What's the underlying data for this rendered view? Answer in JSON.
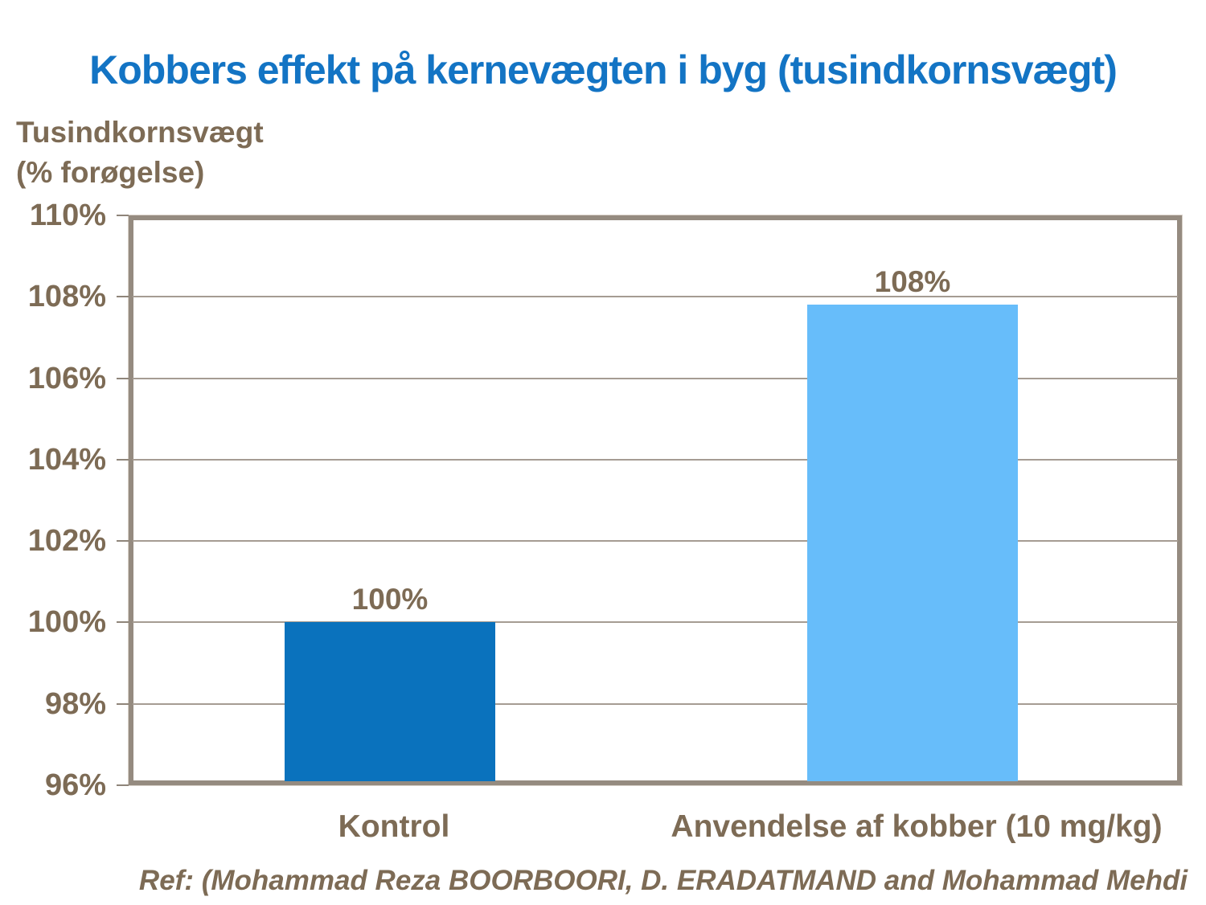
{
  "slide": {
    "title": "Kobbers effekt på kernevægten i byg (tusindkornsvægt)",
    "y_axis_title": {
      "line1": "Tusindkornsvægt",
      "line2": "(% forøgelse)"
    },
    "footer": "Ref: (Mohammad Reza BOORBOORI, D. ERADATMAND and Mohammad Mehdi"
  },
  "colors": {
    "title_blue": "#1374c4",
    "label_brown": "#7d6b55",
    "bar_dark_blue": "#0a72bd",
    "bar_light_blue": "#67bdfa",
    "plot_border": "#c0b7ae",
    "plot_border_inner": "#958b80",
    "gridline": "#a59c93"
  },
  "chart_data": {
    "type": "bar",
    "title": "Kobbers effekt på kernevægten i byg (tusindkornsvægt)",
    "ylabel": "Tusindkornsvægt (% forøgelse)",
    "xlabel": "",
    "categories": [
      "Kontrol",
      "Anvendelse af kobber (10 mg/kg)"
    ],
    "values": [
      100,
      107.8
    ],
    "value_labels": [
      "100%",
      "108%"
    ],
    "bar_colors": [
      "#0a72bd",
      "#67bdfa"
    ],
    "ylim": [
      96,
      110
    ],
    "ytick_step": 2,
    "ytick_labels": [
      "96%",
      "98%",
      "100%",
      "102%",
      "104%",
      "106%",
      "108%",
      "110%"
    ],
    "grid": true,
    "legend": false,
    "footnote": "Ref: (Mohammad Reza BOORBOORI, D. ERADATMAND and Mohammad Mehdi"
  }
}
